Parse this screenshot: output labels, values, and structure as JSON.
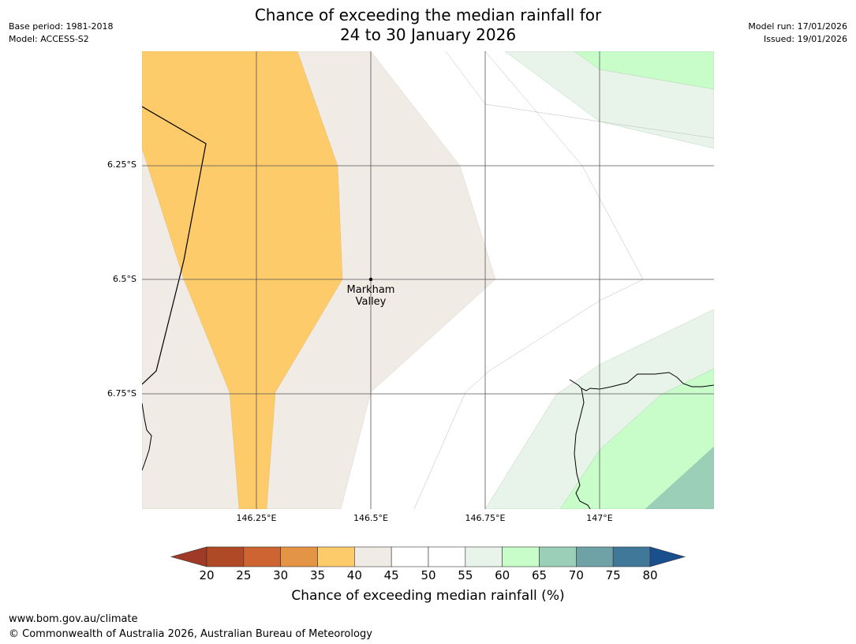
{
  "title": {
    "line1": "Chance of exceeding the median rainfall for",
    "line2": "24 to 30 January 2026"
  },
  "meta_left": {
    "base_period": "Base period: 1981-2018",
    "model": "Model: ACCESS-S2"
  },
  "meta_right": {
    "model_run": "Model run: 17/01/2026",
    "issued": "Issued: 19/01/2026"
  },
  "map": {
    "latitude_labels": [
      "6.25°S",
      "6.5°S",
      "6.75°S"
    ],
    "longitude_labels": [
      "146.25°E",
      "146.5°E",
      "146.75°E",
      "147°E"
    ],
    "place": {
      "name": "Markham Valley",
      "line1": "Markham",
      "line2": "Valley",
      "lon": 146.5,
      "lat": -6.5
    },
    "extent": {
      "lon_min": 146.0,
      "lon_max": 147.25,
      "lat_min": -7.0,
      "lat_max": -6.0
    }
  },
  "colorbar": {
    "label": "Chance of exceeding median rainfall (%)",
    "ticks": [
      "20",
      "25",
      "30",
      "35",
      "40",
      "45",
      "50",
      "55",
      "60",
      "65",
      "70",
      "75",
      "80"
    ],
    "under_color": "#9e3a26",
    "over_color": "#184f8c",
    "bins": [
      {
        "range": "20-25",
        "color": "#b04a26"
      },
      {
        "range": "25-30",
        "color": "#ce6431"
      },
      {
        "range": "30-35",
        "color": "#e39444"
      },
      {
        "range": "35-40",
        "color": "#fecb6a"
      },
      {
        "range": "40-45",
        "color": "#f0ebe5"
      },
      {
        "range": "45-50",
        "color": "#ffffff"
      },
      {
        "range": "50-55",
        "color": "#ffffff"
      },
      {
        "range": "55-60",
        "color": "#e8f4ea"
      },
      {
        "range": "60-65",
        "color": "#c8fcc9"
      },
      {
        "range": "65-70",
        "color": "#9ccfb8"
      },
      {
        "range": "70-75",
        "color": "#6fa2a7"
      },
      {
        "range": "75-80",
        "color": "#3f7899"
      }
    ]
  },
  "footer": {
    "url": "www.bom.gov.au/climate",
    "copyright": "© Commonwealth of Australia 2026, Australian Bureau of Meteorology"
  }
}
